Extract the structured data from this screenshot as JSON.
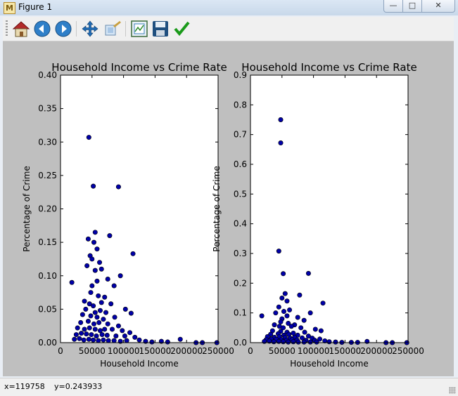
{
  "window": {
    "title": "Figure 1",
    "app_icon": "matplotlib-figure-icon"
  },
  "window_controls": {
    "minimize": "minimize",
    "maximize": "maximize",
    "close": "close"
  },
  "toolbar": {
    "buttons": [
      {
        "name": "home-button",
        "icon": "home-icon"
      },
      {
        "name": "back-button",
        "icon": "back-arrow-icon"
      },
      {
        "name": "forward-button",
        "icon": "forward-arrow-icon"
      },
      {
        "name": "pan-button",
        "icon": "move-icon"
      },
      {
        "name": "zoom-button",
        "icon": "zoom-rectangle-icon"
      },
      {
        "name": "subplots-button",
        "icon": "subplots-config-icon"
      },
      {
        "name": "save-button",
        "icon": "floppy-disk-icon"
      },
      {
        "name": "edit-button",
        "icon": "checkmark-icon"
      }
    ]
  },
  "status": {
    "x": "x=119758",
    "y": "y=0.243933"
  },
  "colors": {
    "marker_fill": "#0000a8",
    "marker_edge": "#000000",
    "figure_bg": "#bfbfbf"
  },
  "chart_data": [
    {
      "type": "scatter",
      "title": "Household Income vs Crime Rate",
      "xlabel": "Household Income",
      "ylabel": "Percentage of Crime",
      "xlim": [
        0,
        250000
      ],
      "ylim": [
        0,
        0.4
      ],
      "xticks": [
        0,
        50000,
        100000,
        150000,
        200000,
        250000
      ],
      "xtick_labels": [
        "0",
        "50000",
        "100000",
        "150000",
        "200000",
        "250000"
      ],
      "yticks": [
        0.0,
        0.05,
        0.1,
        0.15,
        0.2,
        0.25,
        0.3,
        0.35,
        0.4
      ],
      "ytick_labels": [
        "0.00",
        "0.05",
        "0.10",
        "0.15",
        "0.20",
        "0.25",
        "0.30",
        "0.35",
        "0.40"
      ],
      "points": [
        [
          45000,
          0.307
        ],
        [
          52000,
          0.234
        ],
        [
          92000,
          0.233
        ],
        [
          55000,
          0.165
        ],
        [
          78000,
          0.16
        ],
        [
          44000,
          0.155
        ],
        [
          53000,
          0.15
        ],
        [
          58000,
          0.14
        ],
        [
          47000,
          0.13
        ],
        [
          50000,
          0.125
        ],
        [
          115000,
          0.133
        ],
        [
          62000,
          0.12
        ],
        [
          42000,
          0.115
        ],
        [
          55000,
          0.108
        ],
        [
          65000,
          0.11
        ],
        [
          95000,
          0.1
        ],
        [
          18000,
          0.09
        ],
        [
          58000,
          0.092
        ],
        [
          75000,
          0.095
        ],
        [
          50000,
          0.085
        ],
        [
          85000,
          0.085
        ],
        [
          48000,
          0.075
        ],
        [
          60000,
          0.07
        ],
        [
          70000,
          0.068
        ],
        [
          38000,
          0.062
        ],
        [
          46000,
          0.058
        ],
        [
          52000,
          0.055
        ],
        [
          65000,
          0.06
        ],
        [
          80000,
          0.058
        ],
        [
          40000,
          0.05
        ],
        [
          55000,
          0.045
        ],
        [
          63000,
          0.048
        ],
        [
          72000,
          0.045
        ],
        [
          103000,
          0.05
        ],
        [
          112000,
          0.044
        ],
        [
          35000,
          0.042
        ],
        [
          48000,
          0.04
        ],
        [
          58000,
          0.038
        ],
        [
          68000,
          0.035
        ],
        [
          86000,
          0.038
        ],
        [
          32000,
          0.03
        ],
        [
          44000,
          0.032
        ],
        [
          53000,
          0.028
        ],
        [
          61000,
          0.03
        ],
        [
          75000,
          0.028
        ],
        [
          92000,
          0.025
        ],
        [
          27000,
          0.022
        ],
        [
          38000,
          0.02
        ],
        [
          46000,
          0.022
        ],
        [
          55000,
          0.02
        ],
        [
          63000,
          0.018
        ],
        [
          70000,
          0.02
        ],
        [
          82000,
          0.02
        ],
        [
          98000,
          0.018
        ],
        [
          110000,
          0.015
        ],
        [
          25000,
          0.012
        ],
        [
          33000,
          0.014
        ],
        [
          41000,
          0.013
        ],
        [
          49000,
          0.012
        ],
        [
          57000,
          0.01
        ],
        [
          66000,
          0.012
        ],
        [
          74000,
          0.011
        ],
        [
          88000,
          0.01
        ],
        [
          102000,
          0.01
        ],
        [
          118000,
          0.008
        ],
        [
          22000,
          0.005
        ],
        [
          30000,
          0.006
        ],
        [
          37000,
          0.004
        ],
        [
          45000,
          0.005
        ],
        [
          52000,
          0.004
        ],
        [
          60000,
          0.003
        ],
        [
          68000,
          0.004
        ],
        [
          76000,
          0.003
        ],
        [
          85000,
          0.003
        ],
        [
          95000,
          0.002
        ],
        [
          105000,
          0.003
        ],
        [
          125000,
          0.004
        ],
        [
          135000,
          0.002
        ],
        [
          145000,
          0.001
        ],
        [
          160000,
          0.002
        ],
        [
          170000,
          0.001
        ],
        [
          190000,
          0.005
        ],
        [
          215000,
          0.0
        ],
        [
          225000,
          0.0
        ],
        [
          248000,
          0.0
        ]
      ]
    },
    {
      "type": "scatter",
      "title": "Household Income vs Crime Rate",
      "xlabel": "Household Income",
      "ylabel": "Percentage of Crime",
      "xlim": [
        0,
        250000
      ],
      "ylim": [
        0,
        0.9
      ],
      "xticks": [
        0,
        50000,
        100000,
        150000,
        200000,
        250000
      ],
      "xtick_labels": [
        "0",
        "50000",
        "100000",
        "150000",
        "200000",
        "250000"
      ],
      "yticks": [
        0.0,
        0.1,
        0.2,
        0.3,
        0.4,
        0.5,
        0.6,
        0.7,
        0.8,
        0.9
      ],
      "ytick_labels": [
        "0.0",
        "0.1",
        "0.2",
        "0.3",
        "0.4",
        "0.5",
        "0.6",
        "0.7",
        "0.8",
        "0.9"
      ],
      "points": [
        [
          48000,
          0.75
        ],
        [
          48000,
          0.672
        ],
        [
          45000,
          0.308
        ],
        [
          52000,
          0.232
        ],
        [
          92000,
          0.233
        ],
        [
          55000,
          0.165
        ],
        [
          78000,
          0.16
        ],
        [
          50000,
          0.15
        ],
        [
          58000,
          0.14
        ],
        [
          115000,
          0.133
        ],
        [
          45000,
          0.12
        ],
        [
          62000,
          0.11
        ],
        [
          53000,
          0.105
        ],
        [
          95000,
          0.1
        ],
        [
          40000,
          0.1
        ],
        [
          18000,
          0.09
        ],
        [
          58000,
          0.09
        ],
        [
          75000,
          0.085
        ],
        [
          50000,
          0.08
        ],
        [
          85000,
          0.075
        ],
        [
          48000,
          0.07
        ],
        [
          60000,
          0.065
        ],
        [
          70000,
          0.06
        ],
        [
          38000,
          0.06
        ],
        [
          46000,
          0.055
        ],
        [
          52000,
          0.05
        ],
        [
          65000,
          0.055
        ],
        [
          80000,
          0.05
        ],
        [
          103000,
          0.045
        ],
        [
          112000,
          0.04
        ],
        [
          35000,
          0.04
        ],
        [
          48000,
          0.038
        ],
        [
          58000,
          0.035
        ],
        [
          68000,
          0.032
        ],
        [
          86000,
          0.035
        ],
        [
          32000,
          0.028
        ],
        [
          44000,
          0.03
        ],
        [
          53000,
          0.025
        ],
        [
          61000,
          0.028
        ],
        [
          75000,
          0.025
        ],
        [
          92000,
          0.022
        ],
        [
          27000,
          0.02
        ],
        [
          38000,
          0.018
        ],
        [
          46000,
          0.02
        ],
        [
          55000,
          0.018
        ],
        [
          63000,
          0.015
        ],
        [
          70000,
          0.018
        ],
        [
          82000,
          0.016
        ],
        [
          98000,
          0.015
        ],
        [
          110000,
          0.012
        ],
        [
          25000,
          0.01
        ],
        [
          33000,
          0.012
        ],
        [
          41000,
          0.011
        ],
        [
          49000,
          0.01
        ],
        [
          57000,
          0.008
        ],
        [
          66000,
          0.01
        ],
        [
          74000,
          0.009
        ],
        [
          88000,
          0.008
        ],
        [
          102000,
          0.008
        ],
        [
          118000,
          0.006
        ],
        [
          22000,
          0.004
        ],
        [
          30000,
          0.005
        ],
        [
          37000,
          0.003
        ],
        [
          45000,
          0.004
        ],
        [
          52000,
          0.003
        ],
        [
          60000,
          0.002
        ],
        [
          68000,
          0.003
        ],
        [
          76000,
          0.002
        ],
        [
          85000,
          0.002
        ],
        [
          95000,
          0.002
        ],
        [
          105000,
          0.002
        ],
        [
          125000,
          0.003
        ],
        [
          135000,
          0.002
        ],
        [
          145000,
          0.001
        ],
        [
          160000,
          0.001
        ],
        [
          170000,
          0.001
        ],
        [
          185000,
          0.004
        ],
        [
          215000,
          0.0
        ],
        [
          225000,
          0.0
        ],
        [
          248000,
          0.0
        ]
      ]
    }
  ]
}
